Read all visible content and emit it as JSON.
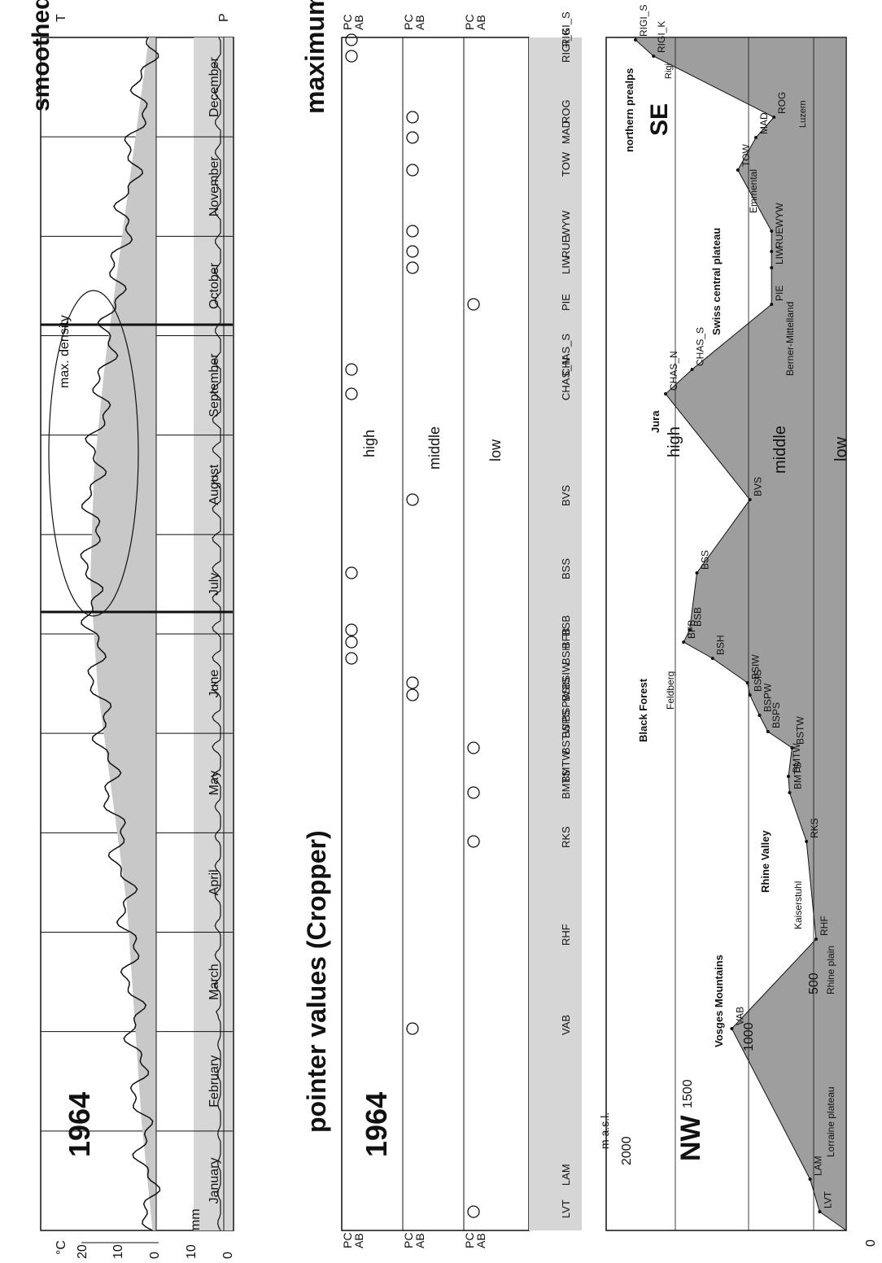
{
  "colors": {
    "relief": "#9e9e9e",
    "band": "#d6d6d6",
    "tempArea": "#4a4a4a",
    "tempLight": "#c8c8c8",
    "ink": "#111111"
  },
  "panel1": {
    "title": "smoothed daily temperature and precipitation values from Basel",
    "year": "1964",
    "t_label": "T",
    "p_label": "P",
    "temp_unit": "°C",
    "precip_unit": "mm",
    "temp_ticks": [
      "20",
      "10",
      "0"
    ],
    "precip_ticks": [
      "10",
      "0"
    ],
    "months": [
      "January",
      "February",
      "March",
      "April",
      "May",
      "June",
      "July",
      "August",
      "September",
      "October",
      "November",
      "December"
    ],
    "annotation": "max. density"
  },
  "panel2": {
    "title": "pointer values (Cropper)",
    "year": "1964",
    "right_title": "maximum density",
    "levels": [
      "high",
      "middle",
      "low"
    ],
    "pcab": [
      "PC",
      "AB"
    ],
    "stations": [
      "LVT",
      "LAM",
      "VAB",
      "RHF",
      "RKS",
      "BMTS",
      "BMTW",
      "BSTW",
      "BSPS",
      "BSPW",
      "BSIS",
      "BSIW",
      "BSH",
      "BFB",
      "BSB",
      "BSS",
      "BVS",
      "CHAS_N",
      "CHAS_S",
      "PIE",
      "LIW",
      "RUE",
      "WYW",
      "TOW",
      "MAD",
      "ROG",
      "RIGI_K",
      "RIGI_S"
    ]
  },
  "panel3": {
    "axis_unit": "m a.s.l.",
    "axis_ticks": [
      "2000",
      "1500",
      "1000",
      "500",
      "0"
    ],
    "nw": "NW",
    "se": "SE",
    "levels": [
      "high",
      "middle",
      "low"
    ],
    "regions": [
      "Lorraine plateau",
      "Vosges Mountains",
      "Rhine plain",
      "Kaiserstuhl",
      "Rhine Valley",
      "Black Forest",
      "Feldberg",
      "Jura",
      "Berner-Mittelland",
      "Swiss central plateau",
      "Emmental",
      "northern prealps",
      "Luzern",
      "Rigi"
    ]
  },
  "chart_data": [
    {
      "type": "line",
      "title": "smoothed daily temperature and precipitation values from Basel",
      "x": [
        "January",
        "February",
        "March",
        "April",
        "May",
        "June",
        "July",
        "August",
        "September",
        "October",
        "November",
        "December"
      ],
      "series": [
        {
          "name": "T",
          "values": [
            1,
            4,
            6,
            8,
            12,
            16,
            18,
            17,
            14,
            10,
            6,
            2
          ]
        },
        {
          "name": "P",
          "values": [
            1,
            1,
            2,
            2,
            3,
            3,
            3,
            3,
            2,
            2,
            2,
            1
          ]
        }
      ],
      "ylabel": "°C / mm",
      "ylim": [
        0,
        20
      ]
    },
    {
      "type": "scatter",
      "title": "pointer values (Cropper)",
      "categories": [
        "LVT",
        "LAM",
        "VAB",
        "RHF",
        "RKS",
        "BMTS",
        "BMTW",
        "BSTW",
        "BSPS",
        "BSPW",
        "BSIS",
        "BSIW",
        "BSH",
        "BFB",
        "BSB",
        "BSS",
        "BVS",
        "CHAS_N",
        "CHAS_S",
        "PIE",
        "LIW",
        "RUE",
        "WYW",
        "TOW",
        "MAD",
        "ROG",
        "RIGI_K",
        "RIGI_S"
      ],
      "series": [
        {
          "name": "high",
          "values": [
            0,
            0,
            0,
            0,
            0,
            0,
            0,
            0,
            0,
            0,
            0,
            0,
            1,
            1,
            1,
            1,
            0,
            1,
            1,
            0,
            0,
            0,
            0,
            0,
            0,
            0,
            1,
            1
          ]
        },
        {
          "name": "middle",
          "values": [
            0,
            0,
            1,
            0,
            0,
            0,
            0,
            0,
            0,
            0,
            1,
            1,
            0,
            0,
            0,
            0,
            1,
            0,
            0,
            0,
            1,
            1,
            1,
            1,
            1,
            1,
            0,
            0
          ]
        },
        {
          "name": "low",
          "values": [
            1,
            0,
            0,
            0,
            1,
            1,
            0,
            1,
            0,
            0,
            0,
            0,
            0,
            0,
            0,
            0,
            0,
            0,
            0,
            1,
            0,
            0,
            0,
            0,
            0,
            0,
            0,
            0
          ]
        }
      ]
    },
    {
      "type": "area",
      "xlabel": "",
      "ylabel": "m a.s.l.",
      "ylim": [
        0,
        2000
      ],
      "categories": [
        "LVT",
        "LAM",
        "VAB",
        "RHF",
        "RKS",
        "BMTS",
        "BMTW",
        "BSTW",
        "BSPS",
        "BSPW",
        "BSIS",
        "BSIW",
        "BSH",
        "BFB",
        "BSB",
        "BSS",
        "BVS",
        "CHAS_N",
        "CHAS_S",
        "PIE",
        "LIW",
        "RUE",
        "WYW",
        "TOW",
        "MAD",
        "ROG",
        "RIGI_K",
        "RIGI_S"
      ],
      "values": [
        220,
        300,
        950,
        250,
        330,
        470,
        480,
        450,
        650,
        720,
        800,
        820,
        1110,
        1350,
        1300,
        1240,
        800,
        1500,
        1280,
        620,
        620,
        620,
        620,
        900,
        750,
        600,
        1600,
        1750
      ]
    }
  ]
}
